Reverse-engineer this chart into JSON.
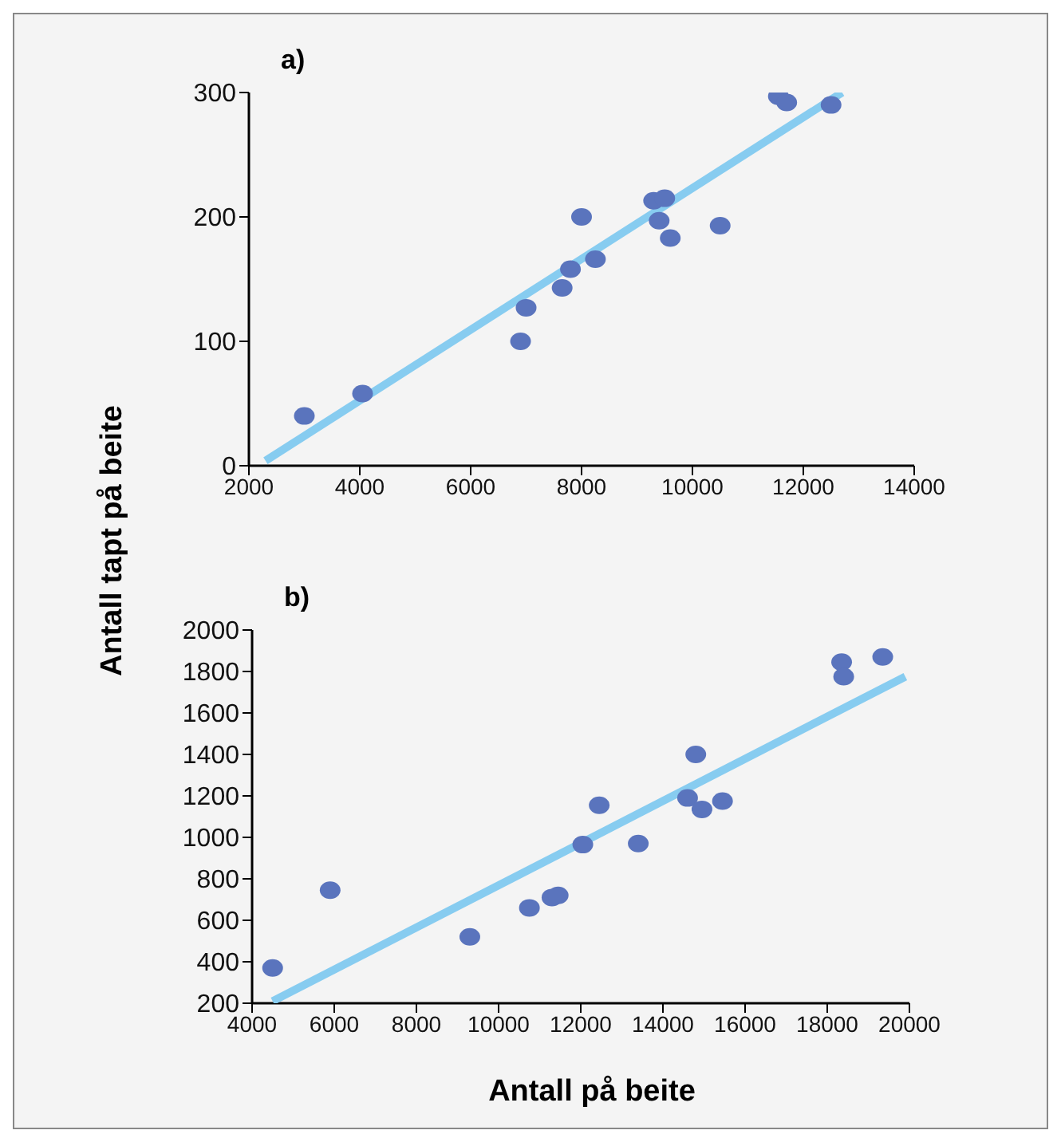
{
  "chart_data": [
    {
      "type": "scatter",
      "title": "a)",
      "ylabel": "Antall tapt på beite",
      "xlim": [
        2000,
        14000
      ],
      "xticks": [
        2000,
        4000,
        6000,
        8000,
        10000,
        12000,
        14000
      ],
      "ylim": [
        0,
        300
      ],
      "yticks": [
        0,
        100,
        200,
        300
      ],
      "marker": "circle",
      "series": [
        {
          "color": "#5a74bd",
          "x": [
            3000,
            4050,
            6900,
            7000,
            7650,
            7800,
            8000,
            8250,
            9300,
            9500,
            9400,
            9600,
            10500,
            11550,
            11700,
            12500
          ],
          "values": [
            40,
            58,
            100,
            127,
            143,
            158,
            200,
            166,
            213,
            215,
            197,
            183,
            193,
            297,
            292,
            290
          ]
        },
        {
          "type": "line",
          "color": "#87ccf0",
          "marker": "none",
          "x": [
            2300,
            12700
          ],
          "values": [
            4,
            300
          ]
        }
      ]
    },
    {
      "type": "scatter",
      "title": "b)",
      "xlabel": "Antall på beite",
      "xlim": [
        4000,
        20000
      ],
      "xticks": [
        4000,
        6000,
        8000,
        10000,
        12000,
        14000,
        16000,
        18000,
        20000
      ],
      "ylim": [
        200,
        2000
      ],
      "yticks": [
        200,
        400,
        600,
        800,
        1000,
        1200,
        1400,
        1600,
        1800,
        2000
      ],
      "marker": "circle",
      "series": [
        {
          "color": "#5a74bd",
          "x": [
            4500,
            5900,
            9300,
            10750,
            11300,
            11450,
            12050,
            12450,
            13400,
            14600,
            14800,
            14950,
            15450,
            18350,
            18400,
            19350
          ],
          "values": [
            370,
            745,
            520,
            660,
            710,
            720,
            965,
            1155,
            970,
            1190,
            1400,
            1135,
            1175,
            1845,
            1775,
            1870
          ]
        },
        {
          "type": "line",
          "color": "#87ccf0",
          "marker": "none",
          "x": [
            4500,
            19900
          ],
          "values": [
            210,
            1775
          ]
        }
      ]
    }
  ]
}
